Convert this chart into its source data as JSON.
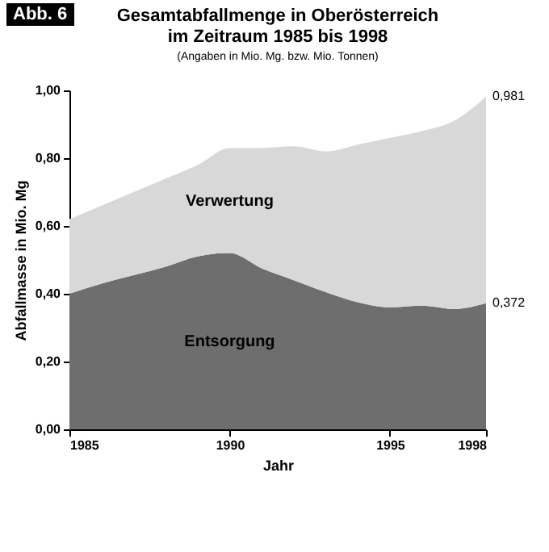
{
  "chart_data": {
    "type": "area",
    "stacked": true,
    "title": "Gesamtabfallmenge in Oberösterreich\nim Zeitraum 1985 bis 1998",
    "subtitle": "(Angaben in Mio. Mg. bzw. Mio. Tonnen)",
    "xlabel": "Jahr",
    "ylabel": "Abfallmasse in Mio. Mg",
    "x": [
      1985,
      1986,
      1987,
      1988,
      1989,
      1990,
      1991,
      1992,
      1993,
      1994,
      1995,
      1996,
      1997,
      1998
    ],
    "series": [
      {
        "name": "Entsorgung",
        "color": "#6e6e6e",
        "values": [
          0.4,
          0.43,
          0.455,
          0.48,
          0.51,
          0.52,
          0.475,
          0.44,
          0.405,
          0.375,
          0.36,
          0.365,
          0.355,
          0.372
        ]
      },
      {
        "name": "Verwertung",
        "color": "#d8d8d8",
        "values": [
          0.22,
          0.23,
          0.245,
          0.26,
          0.27,
          0.31,
          0.355,
          0.395,
          0.415,
          0.465,
          0.5,
          0.515,
          0.555,
          0.609
        ]
      }
    ],
    "xlim": [
      1985,
      1998
    ],
    "xticks": [
      1985,
      1990,
      1995,
      1998
    ],
    "ylim": [
      0,
      1
    ],
    "yticks": [
      {
        "value": 0,
        "label": "0,00"
      },
      {
        "value": 0.2,
        "label": "0,20"
      },
      {
        "value": 0.4,
        "label": "0,40"
      },
      {
        "value": 0.6,
        "label": "0,60"
      },
      {
        "value": 0.8,
        "label": "0,80"
      },
      {
        "value": 1,
        "label": "1,00"
      }
    ],
    "legend": false,
    "annotations": [
      "Abb. 6",
      {
        "text": "0,981",
        "x": 1998,
        "y": 0.981
      },
      {
        "text": "0,372",
        "x": 1998,
        "y": 0.372
      }
    ]
  }
}
